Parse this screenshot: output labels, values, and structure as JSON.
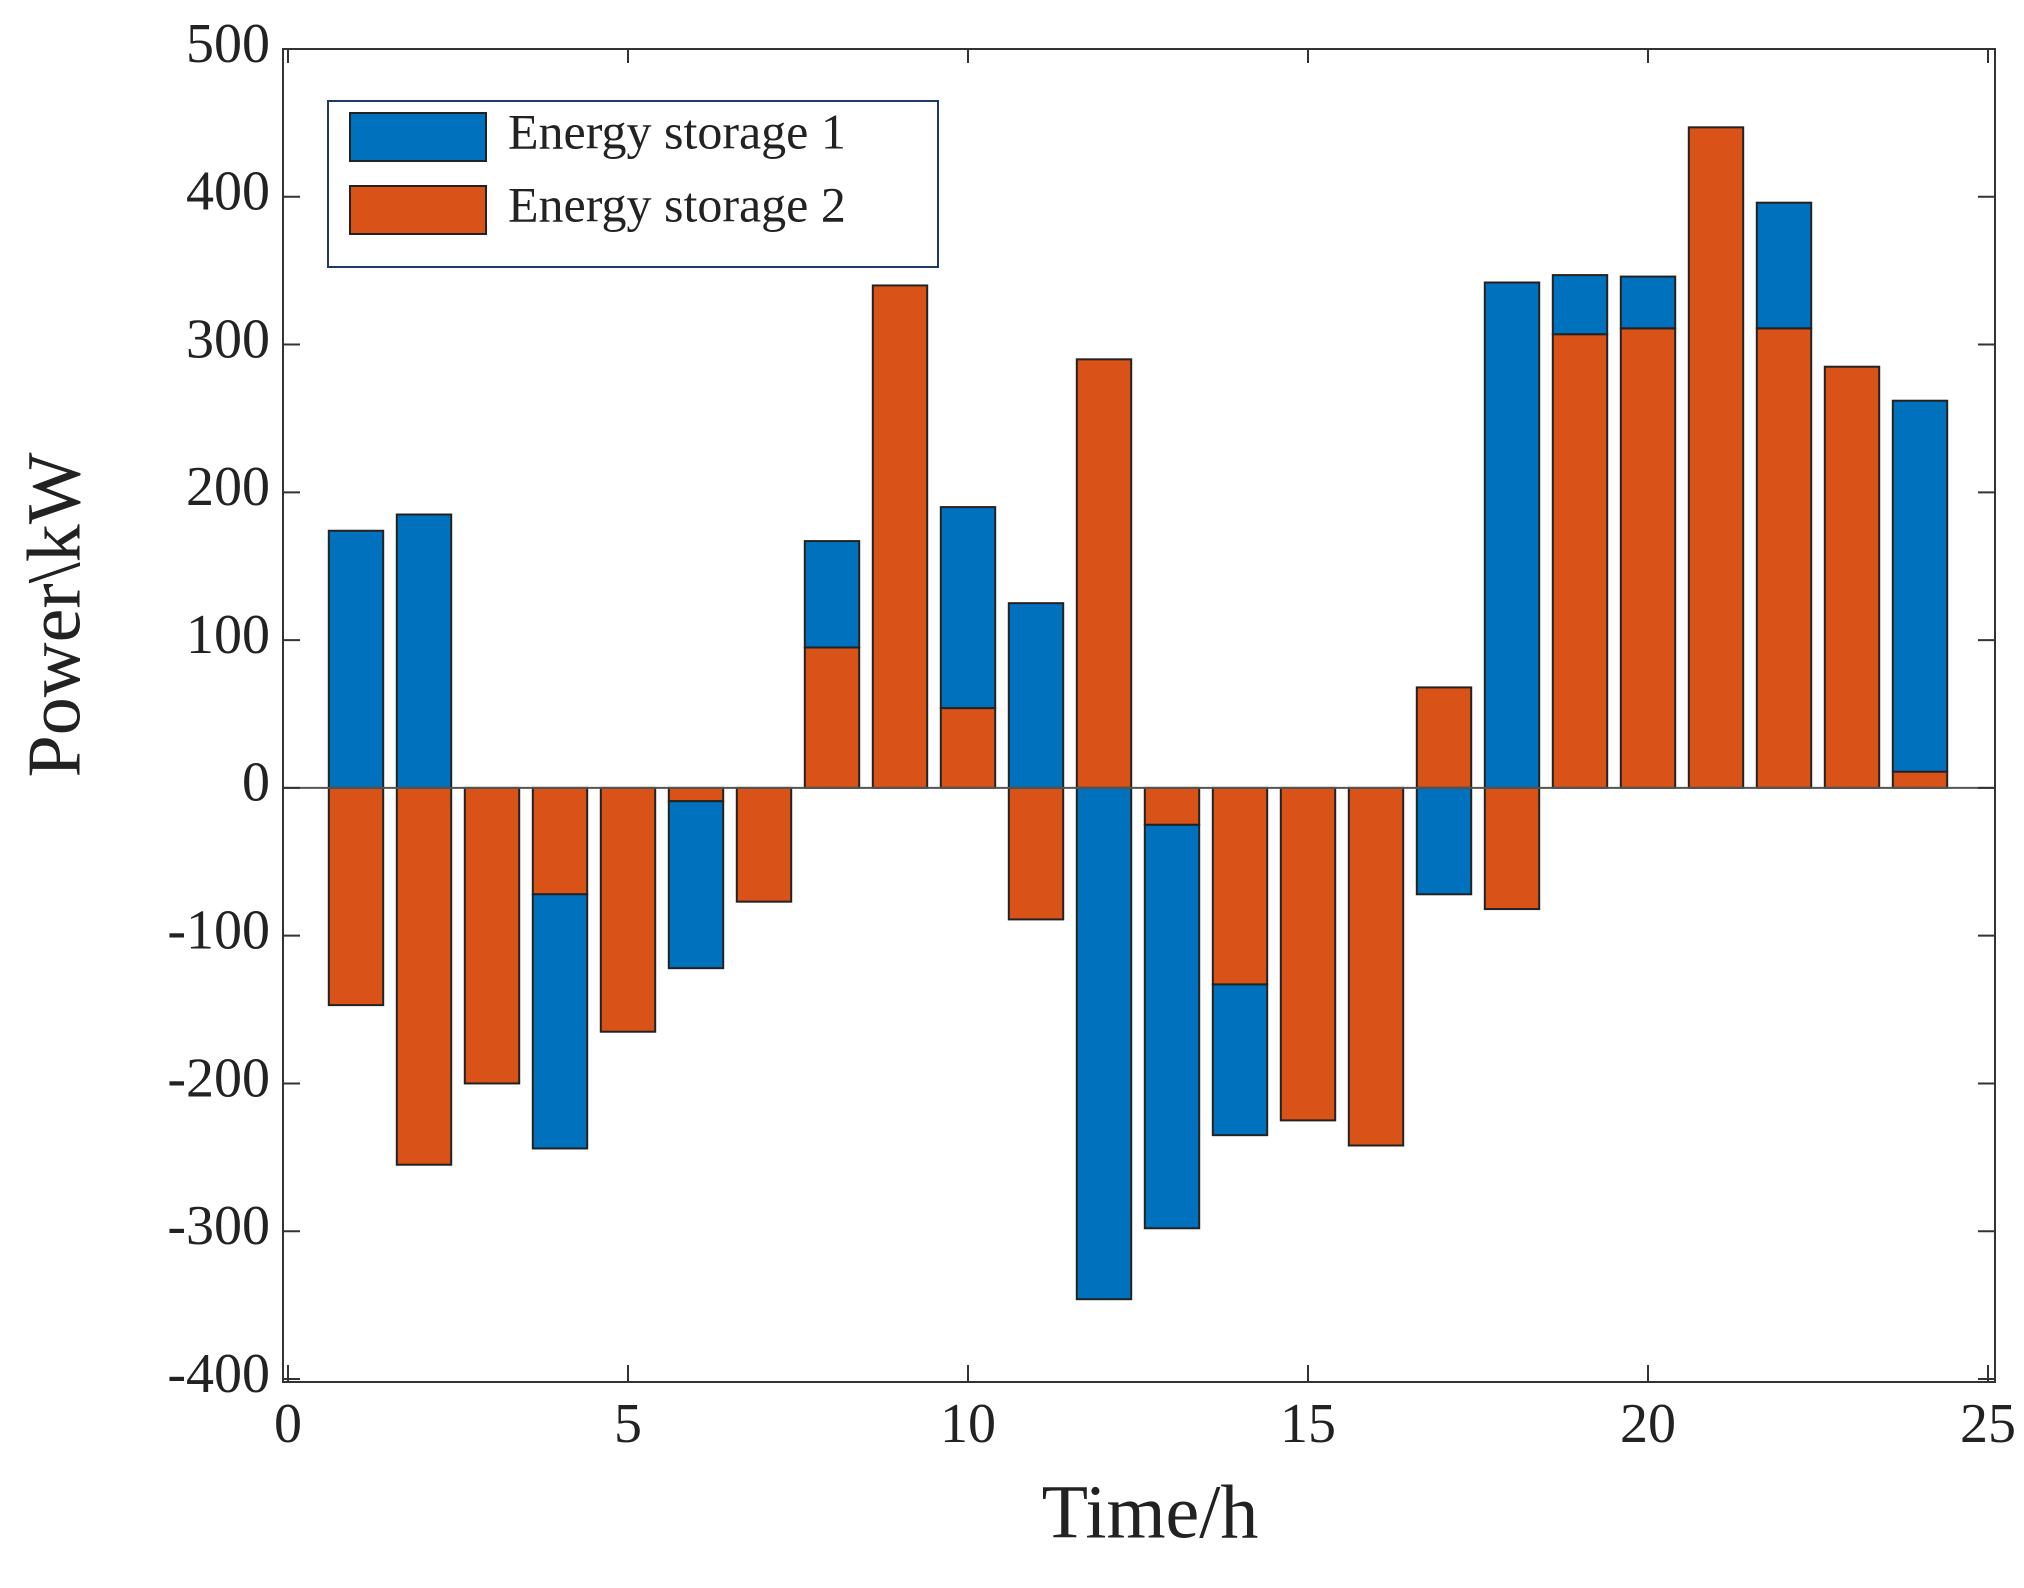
{
  "chart_data": {
    "type": "bar",
    "stacked": true,
    "xlabel": "Time/h",
    "ylabel": "Power\\kW",
    "x": [
      1,
      2,
      3,
      4,
      5,
      6,
      7,
      8,
      9,
      10,
      11,
      12,
      13,
      14,
      15,
      16,
      17,
      18,
      19,
      20,
      21,
      22,
      23,
      24
    ],
    "series": [
      {
        "name": "Energy storage 1",
        "color": "#0072BD",
        "values": [
          174,
          185,
          0,
          -172,
          0,
          -113,
          0,
          72,
          0,
          136,
          125,
          -346,
          -273,
          -102,
          0,
          0,
          -72,
          342,
          40,
          35,
          0,
          85,
          0,
          251
        ]
      },
      {
        "name": "Energy storage 2",
        "color": "#D95319",
        "values": [
          -147,
          -255,
          -200,
          -72,
          -165,
          -9,
          -77,
          95,
          340,
          54,
          -89,
          290,
          -25,
          -133,
          -225,
          -242,
          68,
          -82,
          307,
          311,
          447,
          311,
          285,
          11
        ]
      }
    ],
    "xlim": [
      0,
      25
    ],
    "xticks": [
      0,
      5,
      10,
      15,
      20,
      25
    ],
    "ylim": [
      -400,
      500
    ],
    "yticks": [
      -400,
      -300,
      -200,
      -100,
      0,
      100,
      200,
      300,
      400,
      500
    ],
    "legend": "upper left",
    "grid": false
  }
}
